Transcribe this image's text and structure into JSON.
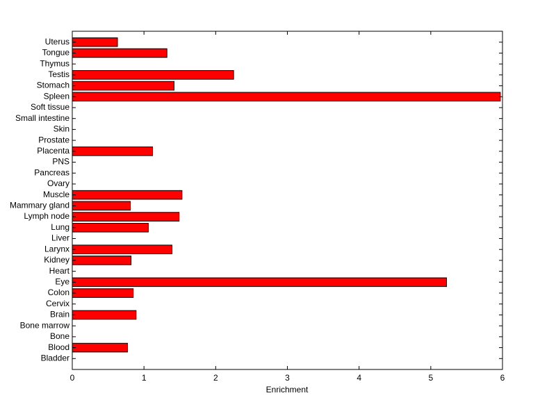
{
  "chart_data": {
    "type": "barh",
    "xlabel": "Enrichment",
    "categories": [
      "Uterus",
      "Tongue",
      "Thymus",
      "Testis",
      "Stomach",
      "Spleen",
      "Soft tissue",
      "Small intestine",
      "Skin",
      "Prostate",
      "Placenta",
      "PNS",
      "Pancreas",
      "Ovary",
      "Muscle",
      "Mammary gland",
      "Lymph node",
      "Lung",
      "Liver",
      "Larynx",
      "Kidney",
      "Heart",
      "Eye",
      "Colon",
      "Cervix",
      "Brain",
      "Bone marrow",
      "Bone",
      "Blood",
      "Bladder"
    ],
    "values": [
      0.63,
      1.32,
      0,
      2.25,
      1.42,
      5.97,
      0,
      0,
      0,
      0,
      1.12,
      0,
      0,
      0,
      1.53,
      0.81,
      1.49,
      1.06,
      0,
      1.39,
      0.82,
      0,
      5.22,
      0.85,
      0,
      0.89,
      0,
      0,
      0.77,
      0
    ],
    "color": "#ff0000",
    "edgecolor": "#000000",
    "xlim": [
      0,
      6
    ],
    "xticks": [
      0,
      1,
      2,
      3,
      4,
      5,
      6
    ]
  }
}
